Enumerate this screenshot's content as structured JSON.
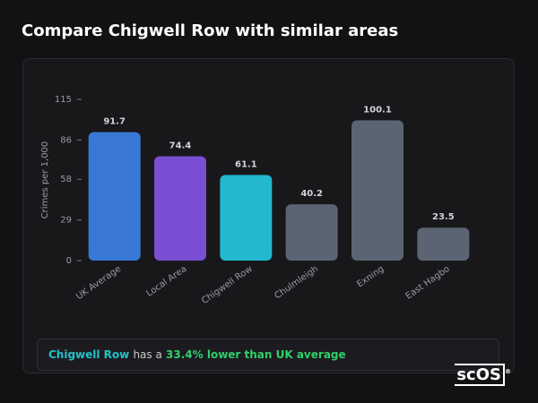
{
  "header": {
    "title": "Compare Chigwell Row with similar areas"
  },
  "chart_data": {
    "type": "bar",
    "y_label": "Crimes per 1,000",
    "categories": [
      "UK Average",
      "Local Area",
      "Chigwell Row",
      "Chulmleigh",
      "Exning",
      "East Hagbo"
    ],
    "values": [
      91.7,
      74.4,
      61.1,
      40.2,
      100.1,
      23.5
    ],
    "colors": [
      "#3a78d6",
      "#7a4fd4",
      "#22b8cf",
      "#5b6472",
      "#5b6472",
      "#5b6472"
    ],
    "ylim": [
      0,
      115
    ],
    "yticks": [
      0,
      29,
      58,
      86,
      115
    ]
  },
  "summary": {
    "area": "Chigwell Row",
    "connector": "has a",
    "comparison": "33.4% lower than UK average"
  },
  "logo": {
    "text": "scOS",
    "mark": "®"
  }
}
